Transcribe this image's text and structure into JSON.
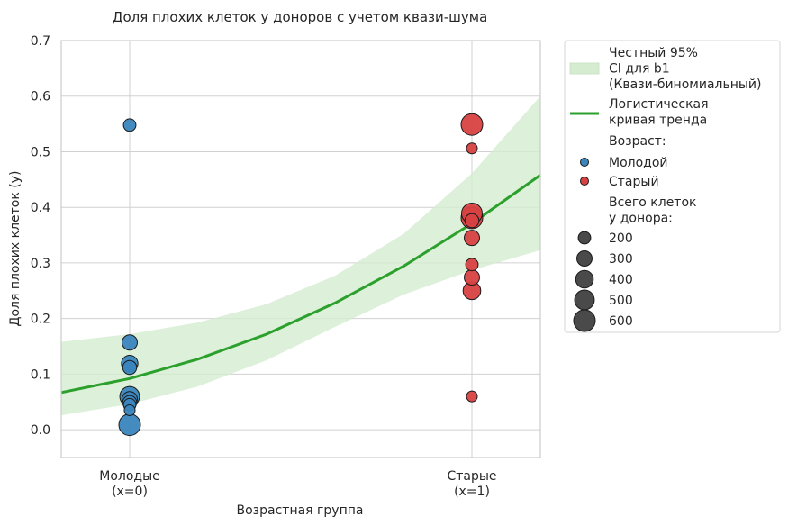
{
  "chart_data": {
    "type": "scatter",
    "title": "Доля плохих клеток у доноров с учетом квази-шума",
    "xlabel": "Возрастная группа",
    "ylabel": "Доля плохих клеток (y)",
    "xlim": [
      -0.2,
      1.2
    ],
    "ylim": [
      -0.05,
      0.7
    ],
    "yticks": [
      0.0,
      0.1,
      0.2,
      0.3,
      0.4,
      0.5,
      0.6,
      0.7
    ],
    "ytick_labels": [
      "0.0",
      "0.1",
      "0.2",
      "0.3",
      "0.4",
      "0.5",
      "0.6",
      "0.7"
    ],
    "xticks": [
      0,
      1
    ],
    "xtick_labels": [
      [
        "Молодые",
        "(x=0)"
      ],
      [
        "Старые",
        "(x=1)"
      ]
    ],
    "grid": true,
    "legend_placement": "outside-right-top",
    "colors": {
      "young": "#3a85bd",
      "old": "#d84142",
      "trend": "#2ca02c",
      "ci_fill": "#d5ecd1",
      "size_marker": "#4a4a4a"
    },
    "series": [
      {
        "name": "Молодой",
        "x": [
          0,
          0,
          0,
          0,
          0,
          0,
          0,
          0,
          0,
          0
        ],
        "y": [
          0.548,
          0.157,
          0.119,
          0.112,
          0.06,
          0.055,
          0.049,
          0.045,
          0.035,
          0.009
        ],
        "total_cells": [
          200,
          300,
          350,
          250,
          500,
          300,
          250,
          200,
          150,
          600
        ]
      },
      {
        "name": "Старый",
        "x": [
          1,
          1,
          1,
          1,
          1,
          1,
          1,
          1,
          1,
          1
        ],
        "y": [
          0.549,
          0.506,
          0.389,
          0.381,
          0.376,
          0.345,
          0.297,
          0.274,
          0.25,
          0.06
        ],
        "total_cells": [
          600,
          150,
          550,
          600,
          250,
          300,
          200,
          300,
          400,
          150
        ]
      }
    ],
    "trend": {
      "name": "Логистическая кривая тренда",
      "x": [
        -0.2,
        0.0,
        0.2,
        0.4,
        0.6,
        0.8,
        1.0,
        1.2
      ],
      "y": [
        0.067,
        0.092,
        0.127,
        0.172,
        0.228,
        0.294,
        0.371,
        0.458
      ]
    },
    "ci_band": {
      "name": "Честный 95% CI для b1 (Квази-биномиальный)",
      "x": [
        -0.2,
        0.0,
        0.2,
        0.4,
        0.6,
        0.8,
        1.0,
        1.2
      ],
      "lower": [
        0.026,
        0.046,
        0.078,
        0.125,
        0.185,
        0.243,
        0.287,
        0.323
      ],
      "upper": [
        0.158,
        0.172,
        0.193,
        0.226,
        0.277,
        0.352,
        0.461,
        0.6
      ]
    },
    "legend": {
      "ci_label": [
        "Честный 95%",
        "CI для b1",
        "(Квази-биномиальный)"
      ],
      "trend_label": [
        "Логистическая",
        "кривая тренда"
      ],
      "age_header": "Возраст:",
      "age_entries": [
        "Молодой",
        "Старый"
      ],
      "size_header": [
        "Всего клеток",
        "у донора:"
      ],
      "size_entries": [
        200,
        300,
        400,
        500,
        600
      ],
      "size_labels": [
        "200",
        "300",
        "400",
        "500",
        "600"
      ]
    }
  }
}
